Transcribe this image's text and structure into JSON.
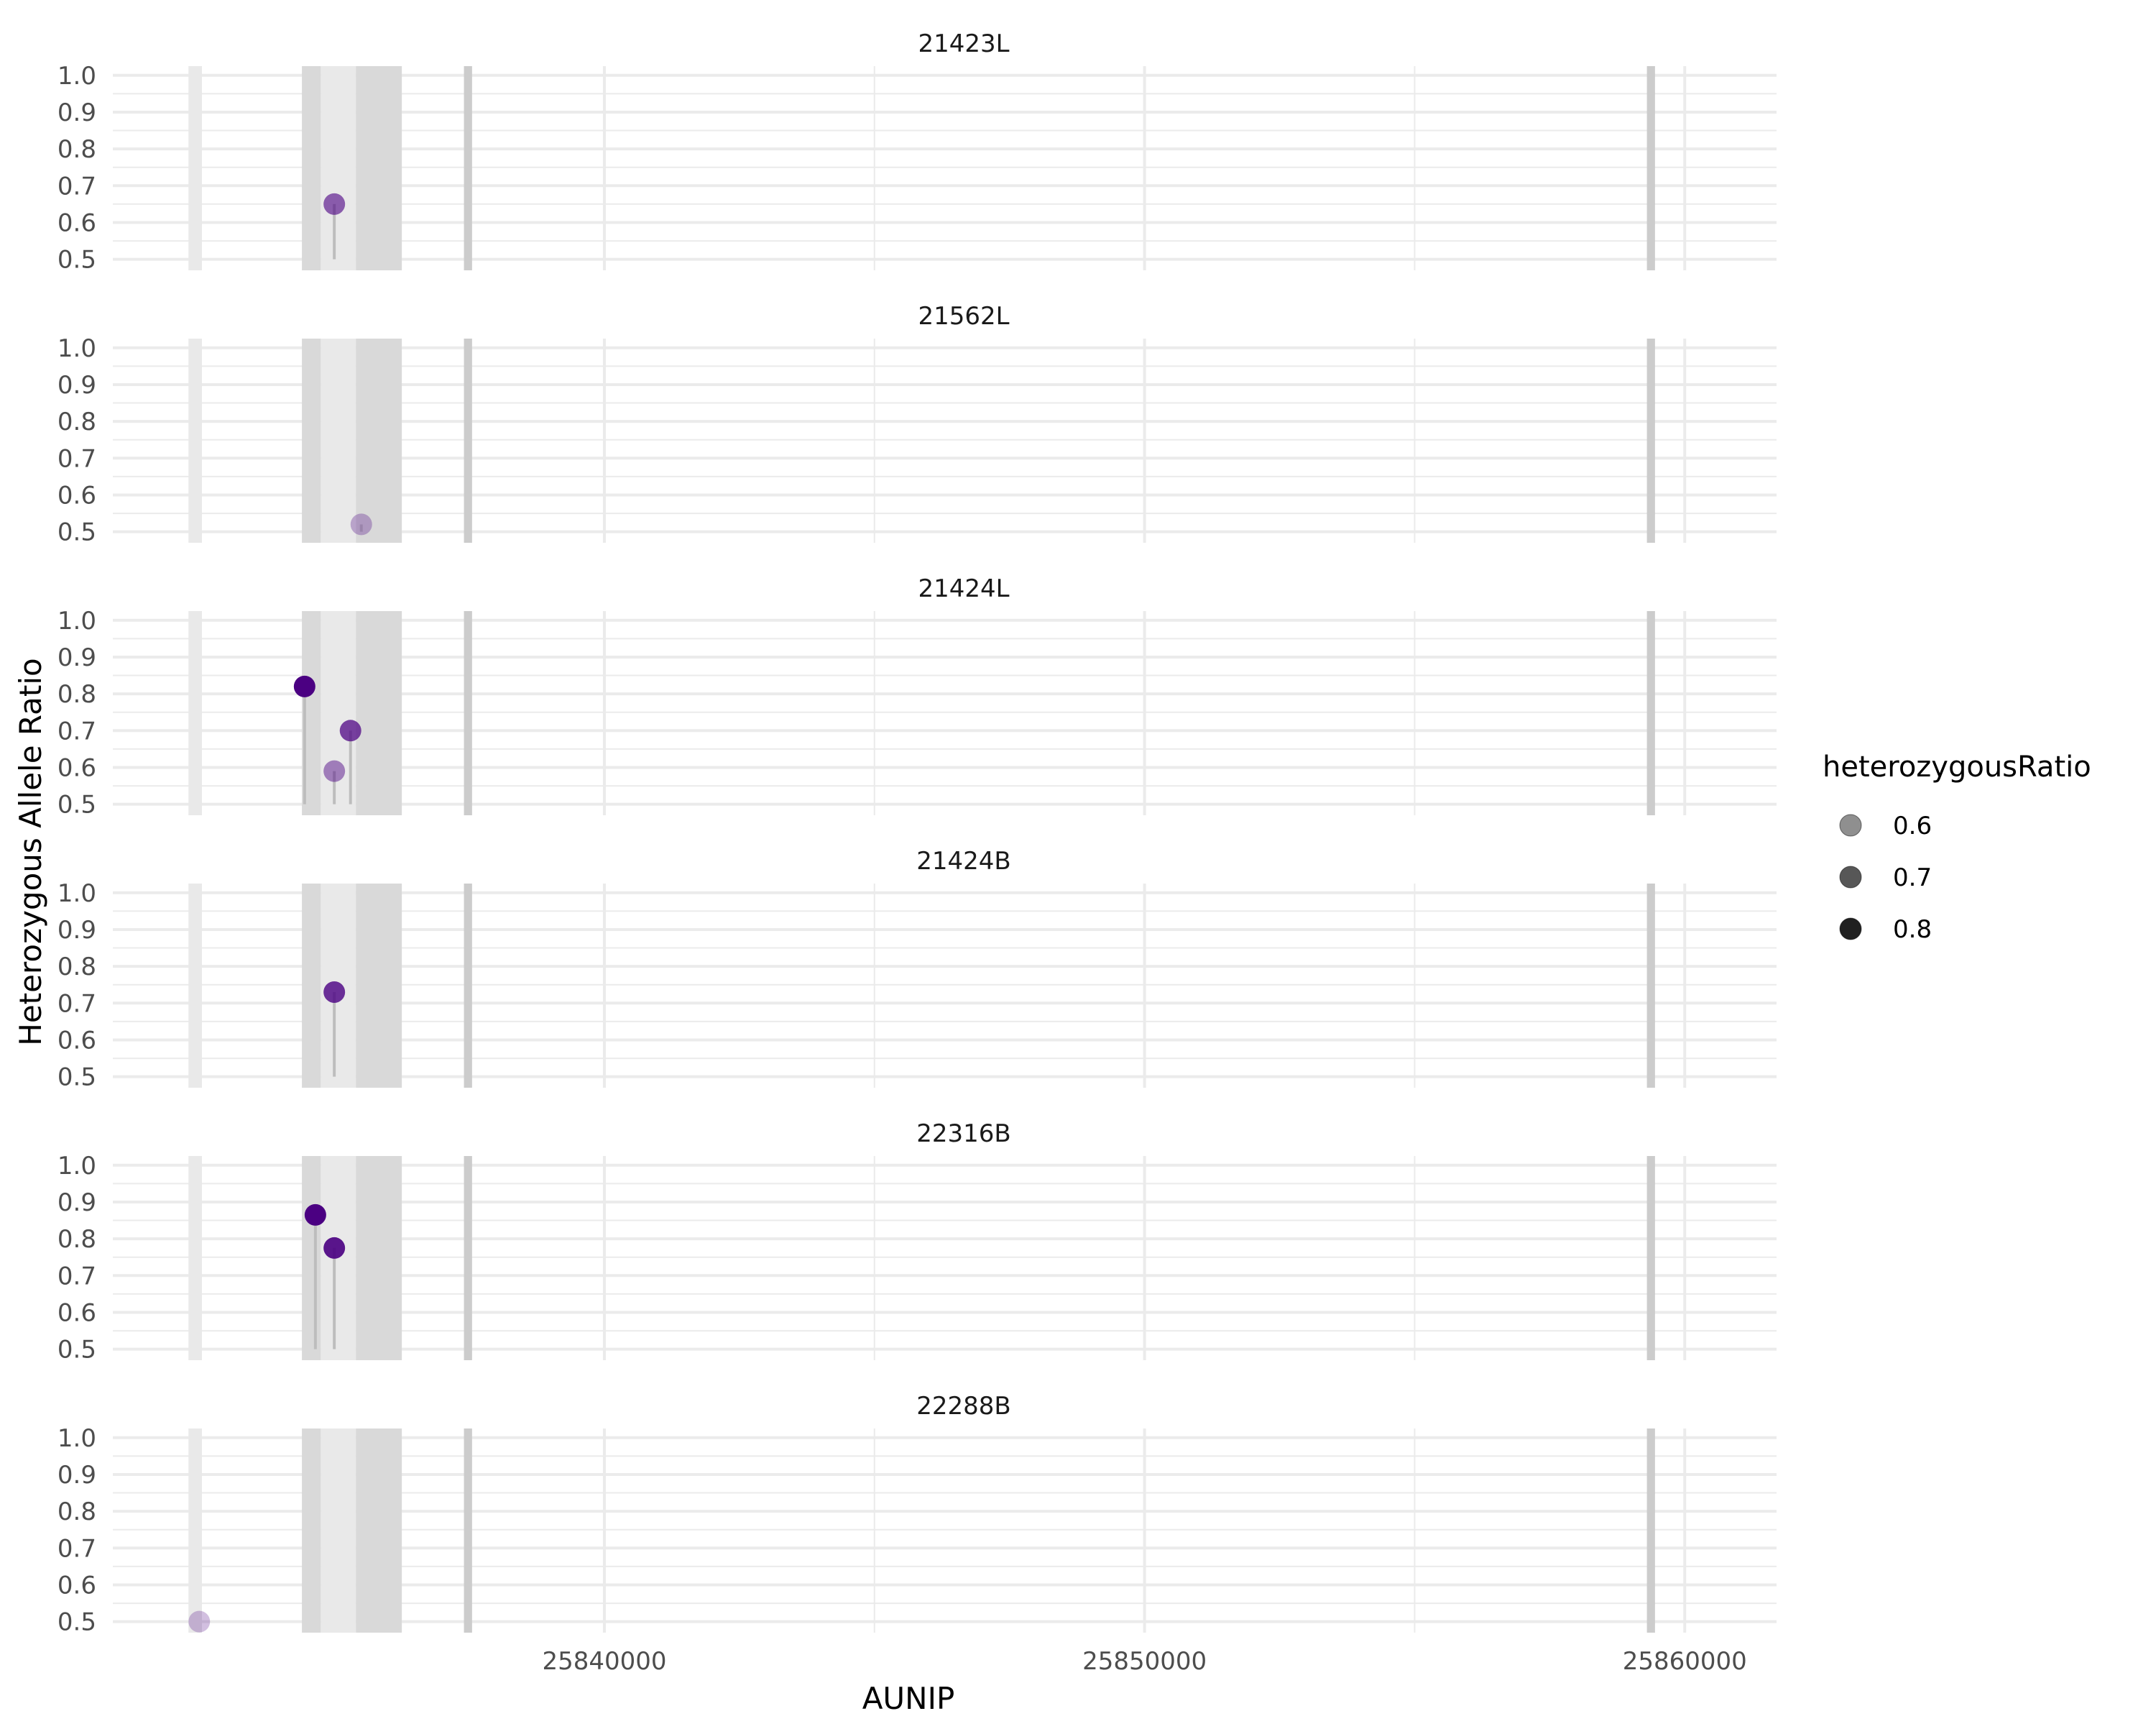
{
  "chart_data": {
    "type": "scatter",
    "subtype": "lollipop-faceted",
    "xlabel": "AUNIP",
    "ylabel": "Heterozygous Allele Ratio",
    "xlim": [
      25830900,
      25861700
    ],
    "ylim": [
      0.47,
      1.025
    ],
    "x_ticks": [
      25840000,
      25850000,
      25860000
    ],
    "x_tick_labels": [
      "25840000",
      "25850000",
      "25860000"
    ],
    "y_ticks": [
      0.5,
      0.6,
      0.7,
      0.8,
      0.9,
      1.0
    ],
    "y_tick_labels": [
      "0.5",
      "0.6",
      "0.7",
      "0.8",
      "0.9",
      "1.0"
    ],
    "grid": true,
    "stem_baseline": 0.5,
    "colors": {
      "point": "#4B0082",
      "stem": "#bdbdbd",
      "grid": "#ebebeb",
      "band_light": "#e9e9e9",
      "band_dark": "#d9d9d9",
      "band_edge": "#cccccc"
    },
    "feature_bands": [
      {
        "start": 25832300,
        "end": 25832550,
        "shade": "light"
      },
      {
        "start": 25834400,
        "end": 25834750,
        "shade": "dark"
      },
      {
        "start": 25834750,
        "end": 25835400,
        "shade": "light"
      },
      {
        "start": 25835400,
        "end": 25836250,
        "shade": "dark"
      },
      {
        "start": 25837400,
        "end": 25837550,
        "shade": "edge"
      },
      {
        "start": 25859300,
        "end": 25859450,
        "shade": "edge"
      }
    ],
    "panels": [
      {
        "name": "21423L",
        "points": [
          {
            "x": 25835000,
            "y": 0.65
          }
        ]
      },
      {
        "name": "21562L",
        "points": [
          {
            "x": 25835500,
            "y": 0.52
          }
        ]
      },
      {
        "name": "21424L",
        "points": [
          {
            "x": 25834450,
            "y": 0.82
          },
          {
            "x": 25835000,
            "y": 0.59
          },
          {
            "x": 25835300,
            "y": 0.7
          }
        ]
      },
      {
        "name": "21424B",
        "points": [
          {
            "x": 25835000,
            "y": 0.73
          }
        ]
      },
      {
        "name": "22316B",
        "points": [
          {
            "x": 25834650,
            "y": 0.865
          },
          {
            "x": 25835000,
            "y": 0.775
          }
        ]
      },
      {
        "name": "22288B",
        "points": [
          {
            "x": 25832500,
            "y": 0.5
          }
        ]
      }
    ],
    "legend": {
      "title": "heterozygousRatio",
      "position": "right",
      "entries": [
        {
          "label": "0.6",
          "value": 0.6
        },
        {
          "label": "0.7",
          "value": 0.7
        },
        {
          "label": "0.8",
          "value": 0.8
        }
      ]
    }
  }
}
